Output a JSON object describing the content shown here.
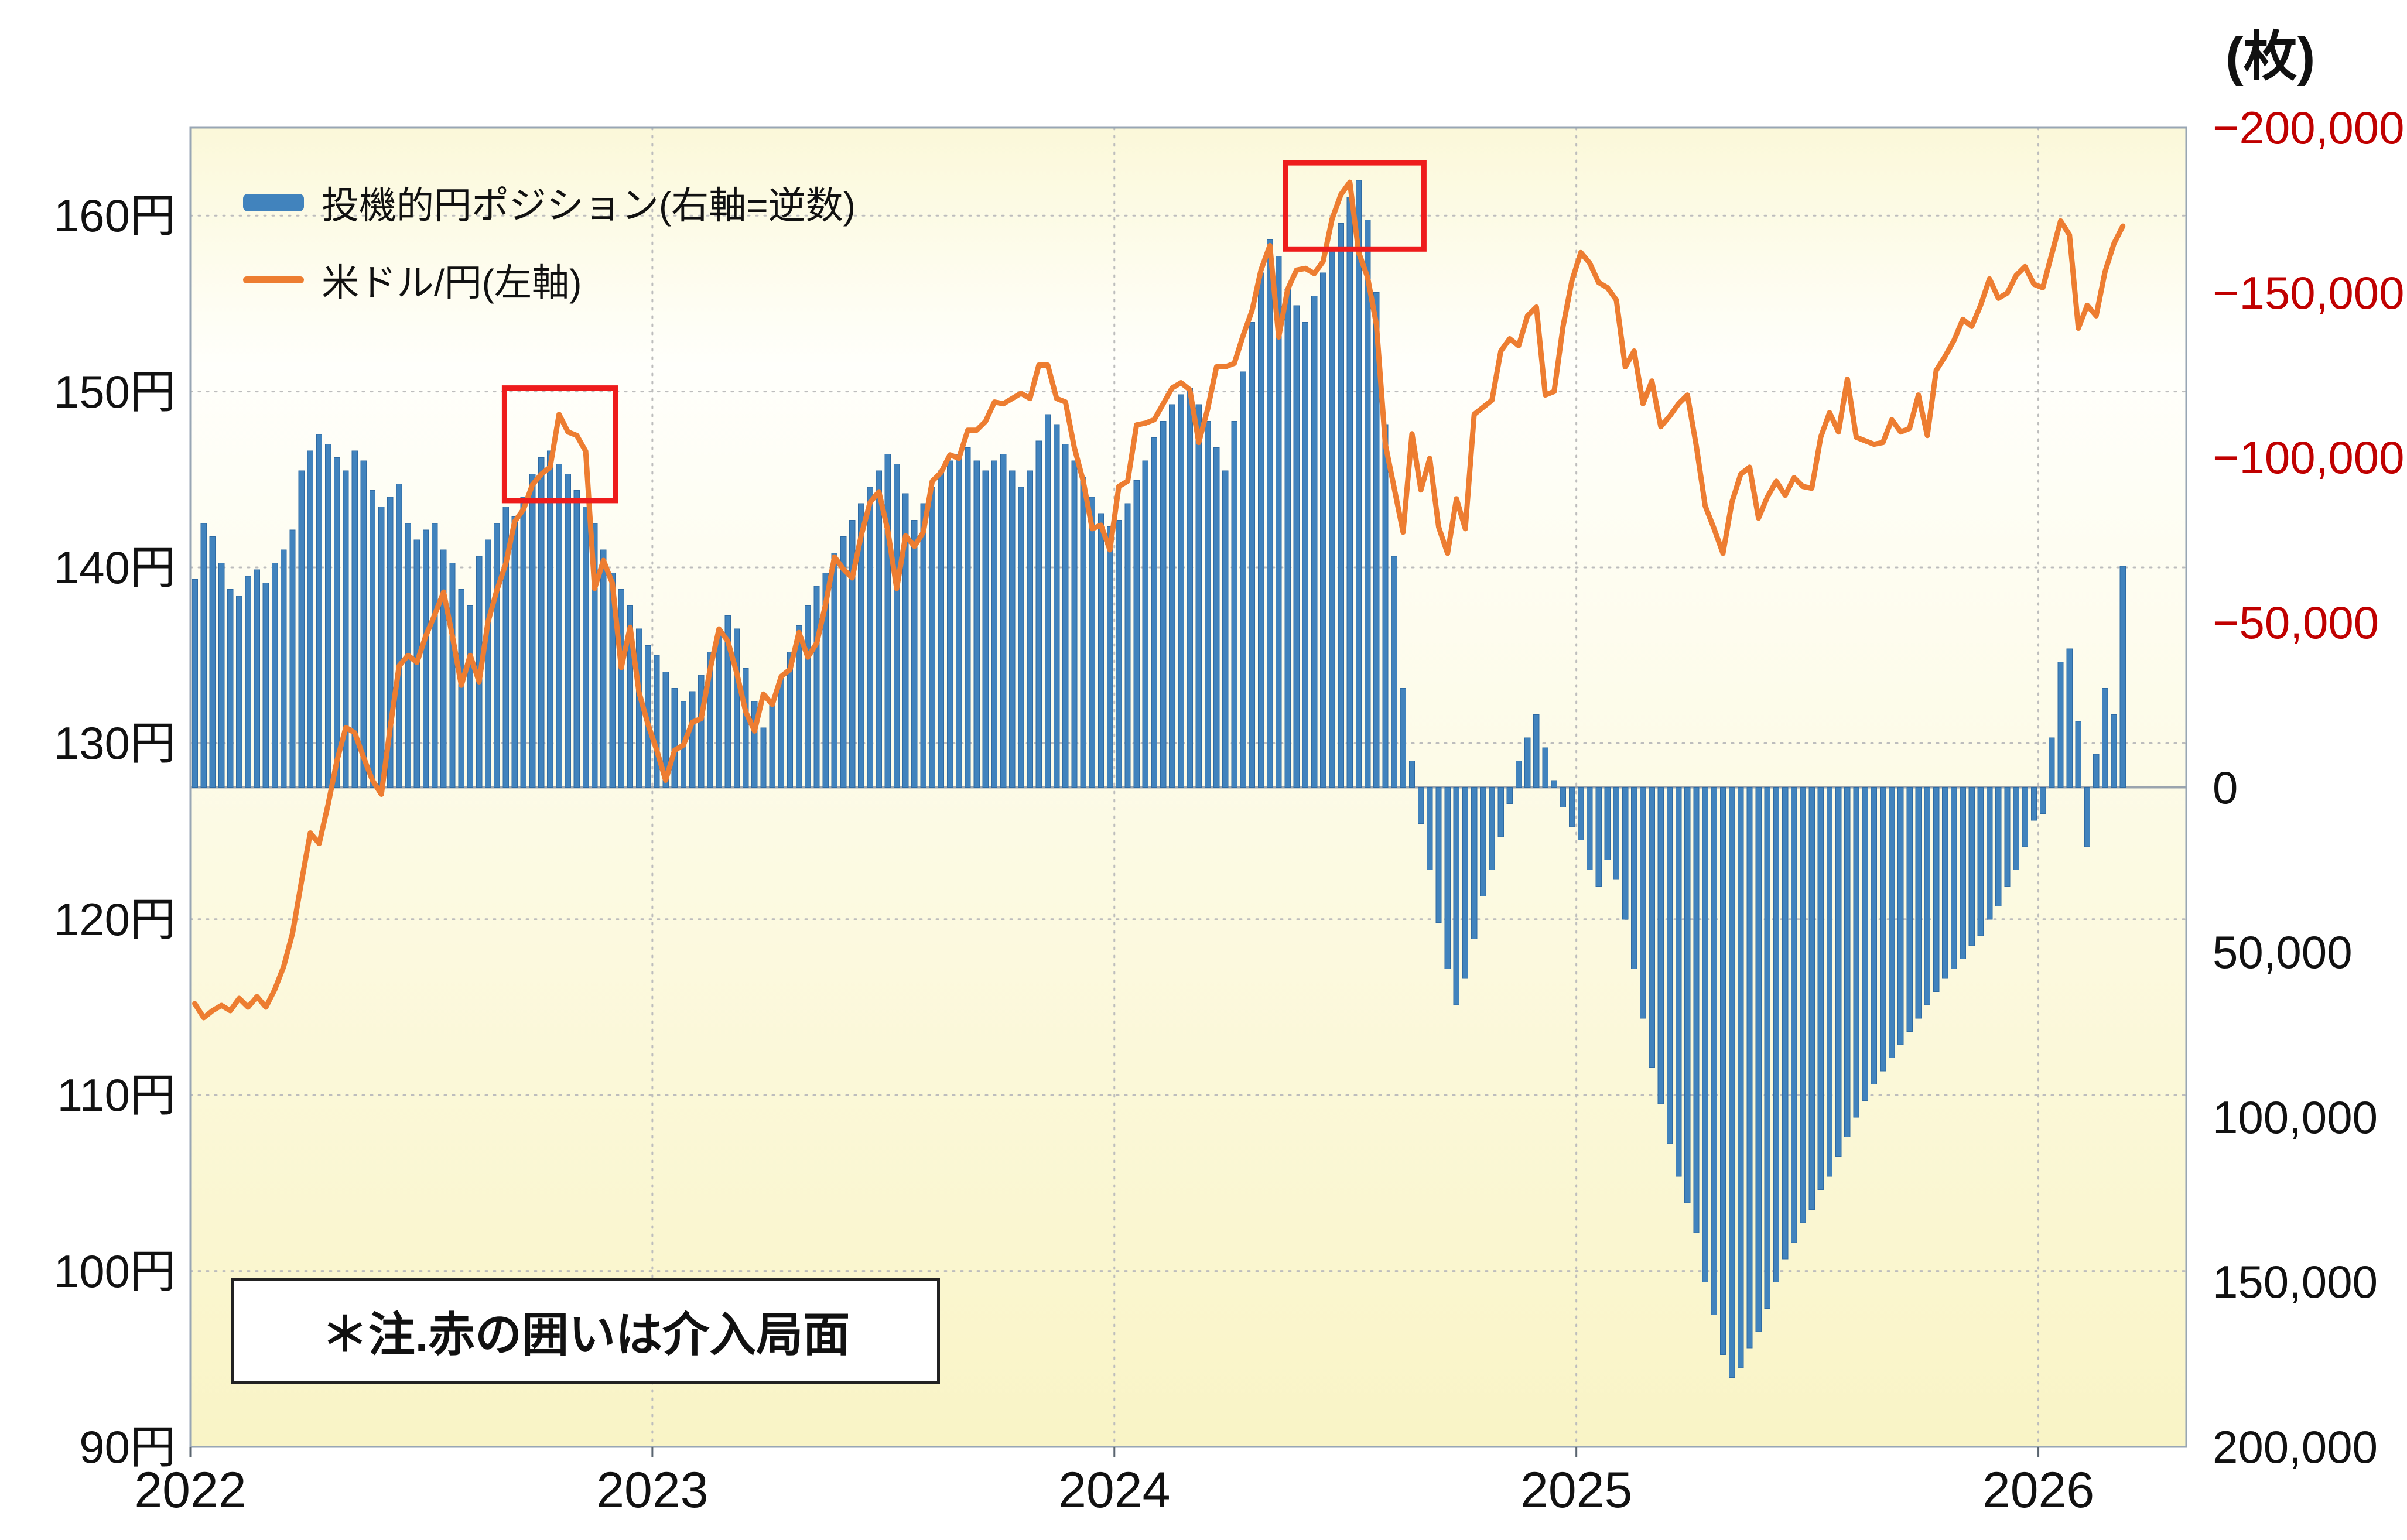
{
  "right_axis": {
    "unit": "(枚)",
    "ticks": [
      {
        "value": -200000,
        "label": "−200,000",
        "negative": true
      },
      {
        "value": -150000,
        "label": "−150,000",
        "negative": true
      },
      {
        "value": -100000,
        "label": "−100,000",
        "negative": true
      },
      {
        "value": -50000,
        "label": "−50,000",
        "negative": true
      },
      {
        "value": 0,
        "label": "0",
        "negative": false
      },
      {
        "value": 50000,
        "label": "50,000",
        "negative": false
      },
      {
        "value": 100000,
        "label": "100,000",
        "negative": false
      },
      {
        "value": 150000,
        "label": "150,000",
        "negative": false
      },
      {
        "value": 200000,
        "label": "200,000",
        "negative": false
      }
    ]
  },
  "left_axis": {
    "ticks": [
      {
        "value": 90,
        "label": "90円"
      },
      {
        "value": 100,
        "label": "100円"
      },
      {
        "value": 110,
        "label": "110円"
      },
      {
        "value": 120,
        "label": "120円"
      },
      {
        "value": 130,
        "label": "130円"
      },
      {
        "value": 140,
        "label": "140円"
      },
      {
        "value": 150,
        "label": "150円"
      },
      {
        "value": 160,
        "label": "160円"
      }
    ]
  },
  "x_axis": {
    "ticks": [
      {
        "value": 2022,
        "label": "2022"
      },
      {
        "value": 2023,
        "label": "2023"
      },
      {
        "value": 2024,
        "label": "2024"
      },
      {
        "value": 2025,
        "label": "2025"
      },
      {
        "value": 2026,
        "label": "2026"
      }
    ]
  },
  "legend": {
    "bars": "投機的円ポジション(右軸=逆数)",
    "line": "米ドル/円(左軸)"
  },
  "note": "＊注.赤の囲いは介入局面",
  "colors": {
    "bar": "#4183bd",
    "bar_stroke": "#2e6ba4",
    "line": "#ed7d31",
    "negative_label": "#c00000",
    "grid": "#bdbdbd",
    "border": "#98a6b4",
    "zero_line": "#9aa4ae",
    "intervention_box": "#ee1c1c",
    "plot_bg_top": "#fbf8d9",
    "plot_bg_upper": "#fffffb",
    "plot_bg_bottom": "#f9f4c6"
  },
  "chart_data": {
    "type": "combo",
    "x_unit": "week",
    "x_start_year": 2022,
    "points_per_year": 52,
    "x_range": [
      2022.0,
      2026.32
    ],
    "left_range": [
      90,
      165
    ],
    "right_range": [
      -200000,
      200000
    ],
    "right_axis_inverted": true,
    "series": [
      {
        "name": "投機的円ポジション(右軸=逆数)",
        "type": "bar",
        "axis": "right",
        "values": [
          -63000,
          -80000,
          -76000,
          -68000,
          -60000,
          -58000,
          -64000,
          -66000,
          -62000,
          -68000,
          -72000,
          -78000,
          -96000,
          -102000,
          -107000,
          -104000,
          -100000,
          -96000,
          -102000,
          -99000,
          -90000,
          -85000,
          -88000,
          -92000,
          -80000,
          -75000,
          -78000,
          -80000,
          -72000,
          -68000,
          -60000,
          -55000,
          -70000,
          -75000,
          -80000,
          -85000,
          -82000,
          -88000,
          -95000,
          -100000,
          -102000,
          -98000,
          -95000,
          -90000,
          -85000,
          -80000,
          -72000,
          -65000,
          -60000,
          -55000,
          -48000,
          -43000,
          -40000,
          -35000,
          -30000,
          -26000,
          -29000,
          -34000,
          -41000,
          -47000,
          -52000,
          -48000,
          -36000,
          -26000,
          -18000,
          -25000,
          -33000,
          -41000,
          -49000,
          -55000,
          -61000,
          -65000,
          -71000,
          -76000,
          -81000,
          -86000,
          -91000,
          -96000,
          -101000,
          -98000,
          -89000,
          -81000,
          -86000,
          -91000,
          -96000,
          -99000,
          -101000,
          -103000,
          -99000,
          -96000,
          -99000,
          -101000,
          -96000,
          -91000,
          -96000,
          -105000,
          -113000,
          -110000,
          -104000,
          -99000,
          -94000,
          -88000,
          -83000,
          -79000,
          -81000,
          -86000,
          -93000,
          -99000,
          -106000,
          -111000,
          -116000,
          -119000,
          -121000,
          -116000,
          -111000,
          -103000,
          -96000,
          -111000,
          -126000,
          -141000,
          -156000,
          -166000,
          -161000,
          -151000,
          -146000,
          -141000,
          -149000,
          -156000,
          -163000,
          -171000,
          -179000,
          -184000,
          -172000,
          -150000,
          -110000,
          -70000,
          -30000,
          -8000,
          11000,
          25000,
          41000,
          55000,
          66000,
          58000,
          46000,
          33000,
          25000,
          15000,
          5000,
          -8000,
          -15000,
          -22000,
          -12000,
          -2000,
          6000,
          12000,
          16000,
          25000,
          30000,
          22000,
          28000,
          40000,
          55000,
          70000,
          85000,
          96000,
          108000,
          118000,
          126000,
          135000,
          150000,
          160000,
          172000,
          179000,
          176000,
          170000,
          165000,
          158000,
          150000,
          143000,
          138000,
          132000,
          128000,
          122000,
          118000,
          112000,
          106000,
          100000,
          95000,
          90000,
          86000,
          82000,
          78000,
          74000,
          70000,
          66000,
          62000,
          58000,
          55000,
          52000,
          48000,
          45000,
          40000,
          36000,
          30000,
          25000,
          18000,
          10000,
          8000,
          -15000,
          -38000,
          -42000,
          -20000,
          18000,
          -10000,
          -30000,
          -22000,
          -67000
        ]
      },
      {
        "name": "米ドル/円(左軸)",
        "type": "line",
        "axis": "left",
        "values": [
          115.2,
          114.4,
          114.8,
          115.1,
          114.8,
          115.5,
          115.0,
          115.6,
          115.0,
          116.0,
          117.3,
          119.2,
          122.1,
          124.9,
          124.3,
          126.5,
          129.0,
          130.9,
          130.6,
          129.2,
          127.9,
          127.1,
          130.9,
          134.4,
          135.0,
          134.6,
          136.1,
          137.3,
          138.6,
          136.1,
          133.3,
          135.0,
          133.5,
          136.9,
          138.7,
          140.2,
          142.6,
          143.3,
          144.7,
          145.3,
          145.7,
          148.7,
          147.7,
          147.5,
          146.6,
          138.8,
          140.4,
          139.1,
          134.3,
          136.6,
          132.9,
          131.1,
          129.6,
          127.9,
          129.6,
          129.9,
          131.2,
          131.4,
          134.2,
          136.5,
          135.8,
          134.0,
          131.8,
          130.7,
          132.8,
          132.2,
          133.8,
          134.2,
          136.3,
          134.9,
          135.7,
          137.9,
          140.6,
          139.9,
          139.4,
          141.8,
          143.7,
          144.3,
          142.1,
          138.8,
          141.8,
          141.2,
          142.0,
          144.9,
          145.4,
          146.4,
          146.2,
          147.8,
          147.8,
          148.3,
          149.4,
          149.3,
          149.6,
          149.9,
          149.6,
          151.5,
          151.5,
          149.6,
          149.4,
          146.8,
          144.9,
          142.2,
          142.4,
          141.0,
          144.6,
          144.9,
          148.1,
          148.2,
          148.4,
          149.3,
          150.2,
          150.5,
          150.1,
          147.1,
          149.0,
          151.4,
          151.4,
          151.6,
          153.2,
          154.6,
          156.9,
          158.3,
          153.1,
          155.8,
          156.9,
          157.0,
          156.7,
          157.4,
          159.8,
          161.2,
          161.9,
          157.9,
          156.5,
          153.8,
          147.0,
          144.5,
          142.0,
          147.6,
          144.4,
          146.2,
          142.3,
          140.8,
          143.9,
          142.2,
          148.7,
          149.1,
          149.5,
          152.3,
          153.0,
          152.6,
          154.3,
          154.8,
          149.8,
          150.0,
          153.7,
          156.3,
          157.9,
          157.3,
          156.2,
          155.9,
          155.2,
          151.4,
          152.3,
          149.3,
          150.6,
          148.0,
          148.6,
          149.3,
          149.8,
          146.9,
          143.5,
          142.2,
          140.8,
          143.7,
          145.3,
          145.7,
          142.8,
          144.0,
          144.9,
          144.1,
          145.1,
          144.6,
          144.5,
          147.4,
          148.8,
          147.7,
          150.7,
          147.4,
          147.2,
          147.0,
          147.1,
          148.4,
          147.7,
          147.9,
          149.8,
          147.5,
          151.2,
          152.0,
          152.9,
          154.1,
          153.7,
          154.9,
          156.4,
          155.3,
          155.6,
          156.6,
          157.1,
          156.1,
          155.9,
          157.8,
          159.7,
          158.9,
          153.6,
          154.9,
          154.3,
          156.8,
          158.4,
          159.4
        ]
      }
    ],
    "annotations": [
      {
        "type": "box",
        "axis": "left",
        "x1": 2022.68,
        "x2": 2022.92,
        "y1": 143.8,
        "y2": 150.2,
        "meaning": "intervention"
      },
      {
        "type": "box",
        "axis": "left",
        "x1": 2024.37,
        "x2": 2024.67,
        "y1": 158.1,
        "y2": 163.0,
        "meaning": "intervention"
      }
    ]
  }
}
